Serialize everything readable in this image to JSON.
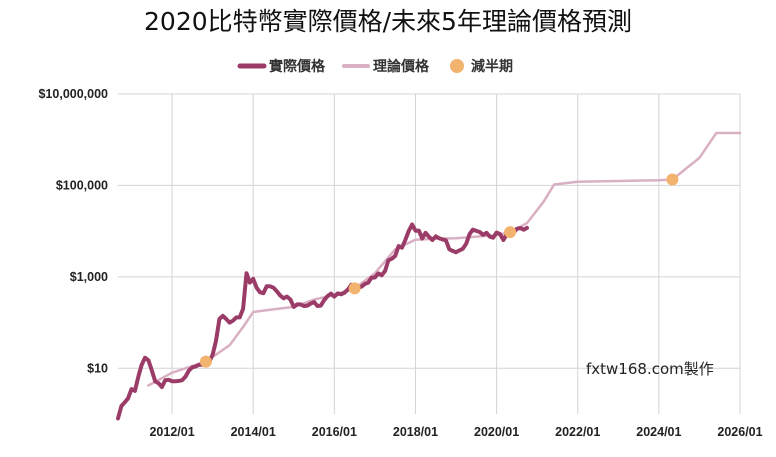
{
  "chart_data": {
    "type": "line",
    "title": "2020比特幣實際價格/未來5年理論價格預測",
    "credit": "fxtw168.com製作",
    "yscale": "log",
    "ylim": [
      1,
      10000000
    ],
    "xlim": [
      "2010-09",
      "2026-01"
    ],
    "grid": true,
    "legend_position": "top",
    "y_ticks": [
      {
        "value": 10,
        "label": "$10"
      },
      {
        "value": 1000,
        "label": "$1,000"
      },
      {
        "value": 100000,
        "label": "$100,000"
      },
      {
        "value": 10000000,
        "label": "$10,000,000"
      }
    ],
    "x_ticks": [
      {
        "value": "2012-01",
        "label": "2012/01"
      },
      {
        "value": "2014-01",
        "label": "2014/01"
      },
      {
        "value": "2016-01",
        "label": "2016/01"
      },
      {
        "value": "2018-01",
        "label": "2018/01"
      },
      {
        "value": "2020-01",
        "label": "2020/01"
      },
      {
        "value": "2022-01",
        "label": "2022/01"
      },
      {
        "value": "2024-01",
        "label": "2024/01"
      },
      {
        "value": "2026-01",
        "label": "2026/01"
      }
    ],
    "series": [
      {
        "name": "實際價格",
        "color": "#9b3b67",
        "points": [
          [
            "2010-09",
            0.8
          ],
          [
            "2010-10",
            1.5
          ],
          [
            "2010-11",
            1.8
          ],
          [
            "2010-12",
            2.2
          ],
          [
            "2011-01",
            3.5
          ],
          [
            "2011-02",
            3.2
          ],
          [
            "2011-03",
            6.5
          ],
          [
            "2011-04",
            12
          ],
          [
            "2011-05",
            17
          ],
          [
            "2011-06",
            15
          ],
          [
            "2011-07",
            9
          ],
          [
            "2011-08",
            5.2
          ],
          [
            "2011-09",
            4.7
          ],
          [
            "2011-10",
            3.9
          ],
          [
            "2011-11",
            5.5
          ],
          [
            "2011-12",
            5.6
          ],
          [
            "2012-01",
            5.2
          ],
          [
            "2012-02",
            5.2
          ],
          [
            "2012-03",
            5.3
          ],
          [
            "2012-04",
            5.5
          ],
          [
            "2012-05",
            6.6
          ],
          [
            "2012-06",
            9
          ],
          [
            "2012-07",
            10.5
          ],
          [
            "2012-08",
            11
          ],
          [
            "2012-09",
            12
          ],
          [
            "2012-10",
            12
          ],
          [
            "2012-11",
            13
          ],
          [
            "2012-12",
            14
          ],
          [
            "2013-01",
            20
          ],
          [
            "2013-02",
            40
          ],
          [
            "2013-03",
            120
          ],
          [
            "2013-04",
            140
          ],
          [
            "2013-05",
            120
          ],
          [
            "2013-06",
            100
          ],
          [
            "2013-07",
            110
          ],
          [
            "2013-08",
            130
          ],
          [
            "2013-09",
            130
          ],
          [
            "2013-10",
            200
          ],
          [
            "2013-11",
            1200
          ],
          [
            "2013-12",
            750
          ],
          [
            "2014-01",
            900
          ],
          [
            "2014-02",
            580
          ],
          [
            "2014-03",
            460
          ],
          [
            "2014-04",
            440
          ],
          [
            "2014-05",
            620
          ],
          [
            "2014-06",
            620
          ],
          [
            "2014-07",
            580
          ],
          [
            "2014-08",
            480
          ],
          [
            "2014-09",
            390
          ],
          [
            "2014-10",
            340
          ],
          [
            "2014-11",
            370
          ],
          [
            "2014-12",
            320
          ],
          [
            "2015-01",
            220
          ],
          [
            "2015-02",
            250
          ],
          [
            "2015-03",
            250
          ],
          [
            "2015-04",
            230
          ],
          [
            "2015-05",
            235
          ],
          [
            "2015-06",
            260
          ],
          [
            "2015-07",
            280
          ],
          [
            "2015-08",
            230
          ],
          [
            "2015-09",
            235
          ],
          [
            "2015-10",
            310
          ],
          [
            "2015-11",
            380
          ],
          [
            "2015-12",
            430
          ],
          [
            "2016-01",
            370
          ],
          [
            "2016-02",
            435
          ],
          [
            "2016-03",
            415
          ],
          [
            "2016-04",
            450
          ],
          [
            "2016-05",
            530
          ],
          [
            "2016-06",
            670
          ],
          [
            "2016-07",
            625
          ],
          [
            "2016-08",
            575
          ],
          [
            "2016-09",
            610
          ],
          [
            "2016-10",
            700
          ],
          [
            "2016-11",
            745
          ],
          [
            "2016-12",
            960
          ],
          [
            "2017-01",
            970
          ],
          [
            "2017-02",
            1190
          ],
          [
            "2017-03",
            1080
          ],
          [
            "2017-04",
            1350
          ],
          [
            "2017-05",
            2300
          ],
          [
            "2017-06",
            2500
          ],
          [
            "2017-07",
            2870
          ],
          [
            "2017-08",
            4700
          ],
          [
            "2017-09",
            4340
          ],
          [
            "2017-10",
            6400
          ],
          [
            "2017-11",
            10000
          ],
          [
            "2017-12",
            14000
          ],
          [
            "2018-01",
            10200
          ],
          [
            "2018-02",
            10300
          ],
          [
            "2018-03",
            6900
          ],
          [
            "2018-04",
            9200
          ],
          [
            "2018-05",
            7500
          ],
          [
            "2018-06",
            6400
          ],
          [
            "2018-07",
            7700
          ],
          [
            "2018-08",
            7000
          ],
          [
            "2018-09",
            6600
          ],
          [
            "2018-10",
            6300
          ],
          [
            "2018-11",
            4000
          ],
          [
            "2018-12",
            3700
          ],
          [
            "2019-01",
            3450
          ],
          [
            "2019-02",
            3800
          ],
          [
            "2019-03",
            4100
          ],
          [
            "2019-04",
            5300
          ],
          [
            "2019-05",
            8600
          ],
          [
            "2019-06",
            10800
          ],
          [
            "2019-07",
            10100
          ],
          [
            "2019-08",
            9600
          ],
          [
            "2019-09",
            8300
          ],
          [
            "2019-10",
            9200
          ],
          [
            "2019-11",
            7600
          ],
          [
            "2019-12",
            7200
          ],
          [
            "2020-01",
            9350
          ],
          [
            "2020-02",
            8600
          ],
          [
            "2020-03",
            6400
          ],
          [
            "2020-04",
            8600
          ],
          [
            "2020-05",
            9450
          ],
          [
            "2020-06",
            9140
          ],
          [
            "2020-07",
            11300
          ],
          [
            "2020-08",
            11650
          ],
          [
            "2020-09",
            10780
          ],
          [
            "2020-10",
            11800
          ]
        ]
      },
      {
        "name": "理論價格",
        "color": "#d9b0c3",
        "points": [
          [
            "2011-06",
            4.2
          ],
          [
            "2012-01",
            8
          ],
          [
            "2012-11",
            14
          ],
          [
            "2013-06",
            32
          ],
          [
            "2013-10",
            80
          ],
          [
            "2014-01",
            170
          ],
          [
            "2014-06",
            190
          ],
          [
            "2015-01",
            220
          ],
          [
            "2015-07",
            320
          ],
          [
            "2016-01",
            400
          ],
          [
            "2016-07",
            560
          ],
          [
            "2017-01",
            1200
          ],
          [
            "2017-07",
            4000
          ],
          [
            "2018-01",
            6500
          ],
          [
            "2018-07",
            6800
          ],
          [
            "2019-01",
            7000
          ],
          [
            "2019-07",
            7600
          ],
          [
            "2020-01",
            8200
          ],
          [
            "2020-05",
            9500
          ],
          [
            "2020-10",
            15000
          ],
          [
            "2021-03",
            45000
          ],
          [
            "2021-06",
            105000
          ],
          [
            "2022-01",
            120000
          ],
          [
            "2023-01",
            125000
          ],
          [
            "2024-01",
            130000
          ],
          [
            "2024-05",
            135000
          ],
          [
            "2025-01",
            400000
          ],
          [
            "2025-06",
            1400000
          ],
          [
            "2026-01",
            1400000
          ]
        ]
      },
      {
        "name": "減半期",
        "color": "#f2b36e",
        "points": [
          [
            "2012-11",
            14
          ],
          [
            "2016-07",
            560
          ],
          [
            "2020-05",
            9500
          ],
          [
            "2024-05",
            135000
          ]
        ]
      }
    ]
  }
}
